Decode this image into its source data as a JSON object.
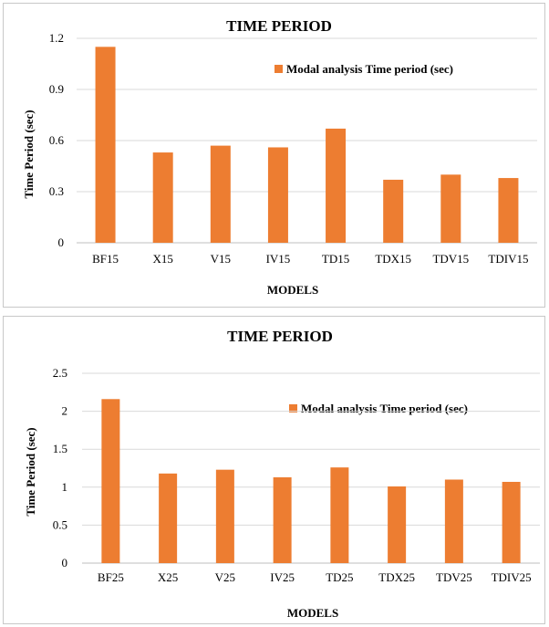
{
  "chart_data": [
    {
      "type": "bar",
      "title": "TIME PERIOD",
      "xlabel": "MODELS",
      "ylabel": "Time Period (sec)",
      "categories": [
        "BF15",
        "X15",
        "V15",
        "IV15",
        "TD15",
        "TDX15",
        "TDV15",
        "TDIV15"
      ],
      "series": [
        {
          "name": "Modal analysis Time period (sec)",
          "values": [
            1.15,
            0.53,
            0.57,
            0.56,
            0.67,
            0.37,
            0.4,
            0.38
          ]
        }
      ],
      "ylim": [
        0,
        1.2
      ],
      "yticks": [
        "0",
        "0.3",
        "0.6",
        "0.9",
        "1.2"
      ],
      "grid": true,
      "legend_position": "top-right",
      "bar_color": "#ED7D31"
    },
    {
      "type": "bar",
      "title": "TIME PERIOD",
      "xlabel": "MODELS",
      "ylabel": "Time Period (sec)",
      "categories": [
        "BF25",
        "X25",
        "V25",
        "IV25",
        "TD25",
        "TDX25",
        "TDV25",
        "TDIV25"
      ],
      "series": [
        {
          "name": "Modal analysis Time period (sec)",
          "values": [
            2.16,
            1.18,
            1.23,
            1.13,
            1.26,
            1.01,
            1.1,
            1.07
          ]
        }
      ],
      "ylim": [
        0,
        2.5
      ],
      "yticks": [
        "0",
        "0.5",
        "1",
        "1.5",
        "2",
        "2.5"
      ],
      "grid": true,
      "legend_position": "top-right",
      "bar_color": "#ED7D31"
    }
  ]
}
